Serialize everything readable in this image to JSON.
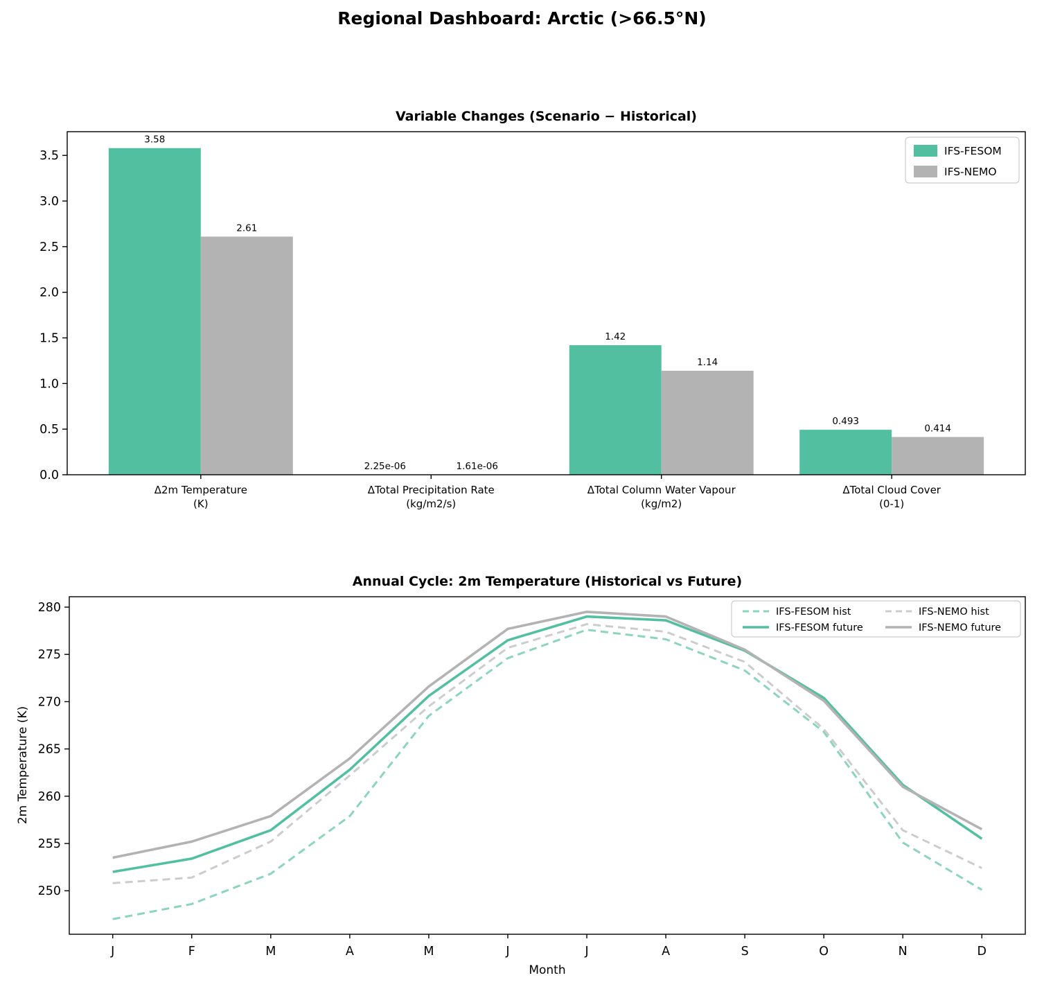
{
  "page": {
    "title": "Regional Dashboard: Arctic (>66.5°N)"
  },
  "colors": {
    "fesom": "#52c0a0",
    "nemo": "#b3b3b3",
    "fesom_hist": "#8bd5bd",
    "nemo_hist": "#cccccc",
    "axis": "#000000",
    "legend_border": "#cccccc",
    "background": "#ffffff"
  },
  "chart_data": [
    {
      "type": "bar",
      "title": "Variable Changes (Scenario − Historical)",
      "categories": [
        [
          "Δ2m Temperature",
          "(K)"
        ],
        [
          "ΔTotal Precipitation Rate",
          "(kg/m2/s)"
        ],
        [
          "ΔTotal Column Water Vapour",
          "(kg/m2)"
        ],
        [
          "ΔTotal Cloud Cover",
          "(0-1)"
        ]
      ],
      "series": [
        {
          "name": "IFS-FESOM",
          "color_key": "fesom",
          "values": [
            3.58,
            2.25e-06,
            1.42,
            0.493
          ],
          "labels": [
            "3.58",
            "2.25e-06",
            "1.42",
            "0.493"
          ]
        },
        {
          "name": "IFS-NEMO",
          "color_key": "nemo",
          "values": [
            2.61,
            1.61e-06,
            1.14,
            0.414
          ],
          "labels": [
            "2.61",
            "1.61e-06",
            "1.14",
            "0.414"
          ]
        }
      ],
      "ylim": [
        0,
        3.76
      ],
      "yticks": [
        {
          "v": 0.0,
          "label": "0.0"
        },
        {
          "v": 0.5,
          "label": "0.5"
        },
        {
          "v": 1.0,
          "label": "1.0"
        },
        {
          "v": 1.5,
          "label": "1.5"
        },
        {
          "v": 2.0,
          "label": "2.0"
        },
        {
          "v": 2.5,
          "label": "2.5"
        },
        {
          "v": 3.0,
          "label": "3.0"
        },
        {
          "v": 3.5,
          "label": "3.5"
        }
      ],
      "grid": false,
      "legend_position": "upper right"
    },
    {
      "type": "line",
      "title": "Annual Cycle: 2m Temperature (Historical vs Future)",
      "xlabel": "Month",
      "ylabel": "2m Temperature (K)",
      "x_categories": [
        "J",
        "F",
        "M",
        "A",
        "M",
        "J",
        "J",
        "A",
        "S",
        "O",
        "N",
        "D"
      ],
      "series": [
        {
          "name": "IFS-FESOM hist",
          "style": "dashed",
          "color_key": "fesom_hist",
          "values": [
            247.0,
            248.6,
            251.8,
            257.9,
            268.5,
            274.6,
            277.6,
            276.6,
            273.3,
            266.8,
            255.1,
            250.1
          ]
        },
        {
          "name": "IFS-FESOM future",
          "style": "solid",
          "color_key": "fesom",
          "values": [
            252.0,
            253.4,
            256.4,
            262.8,
            270.6,
            276.5,
            279.0,
            278.6,
            275.4,
            270.4,
            261.2,
            255.5
          ]
        },
        {
          "name": "IFS-NEMO hist",
          "style": "dashed",
          "color_key": "nemo_hist",
          "values": [
            250.8,
            251.4,
            255.2,
            262.2,
            269.5,
            275.7,
            278.2,
            277.4,
            274.2,
            267.1,
            256.4,
            252.4
          ]
        },
        {
          "name": "IFS-NEMO future",
          "style": "solid",
          "color_key": "nemo",
          "values": [
            253.5,
            255.2,
            257.9,
            264.0,
            271.6,
            277.7,
            279.5,
            279.0,
            275.5,
            270.1,
            261.0,
            256.5
          ]
        }
      ],
      "ylim": [
        245.4,
        281.1
      ],
      "yticks": [
        {
          "v": 250,
          "label": "250"
        },
        {
          "v": 255,
          "label": "255"
        },
        {
          "v": 260,
          "label": "260"
        },
        {
          "v": 265,
          "label": "265"
        },
        {
          "v": 270,
          "label": "270"
        },
        {
          "v": 275,
          "label": "275"
        },
        {
          "v": 280,
          "label": "280"
        }
      ],
      "grid": false,
      "legend_position": "upper right",
      "legend_columns": 2
    }
  ]
}
